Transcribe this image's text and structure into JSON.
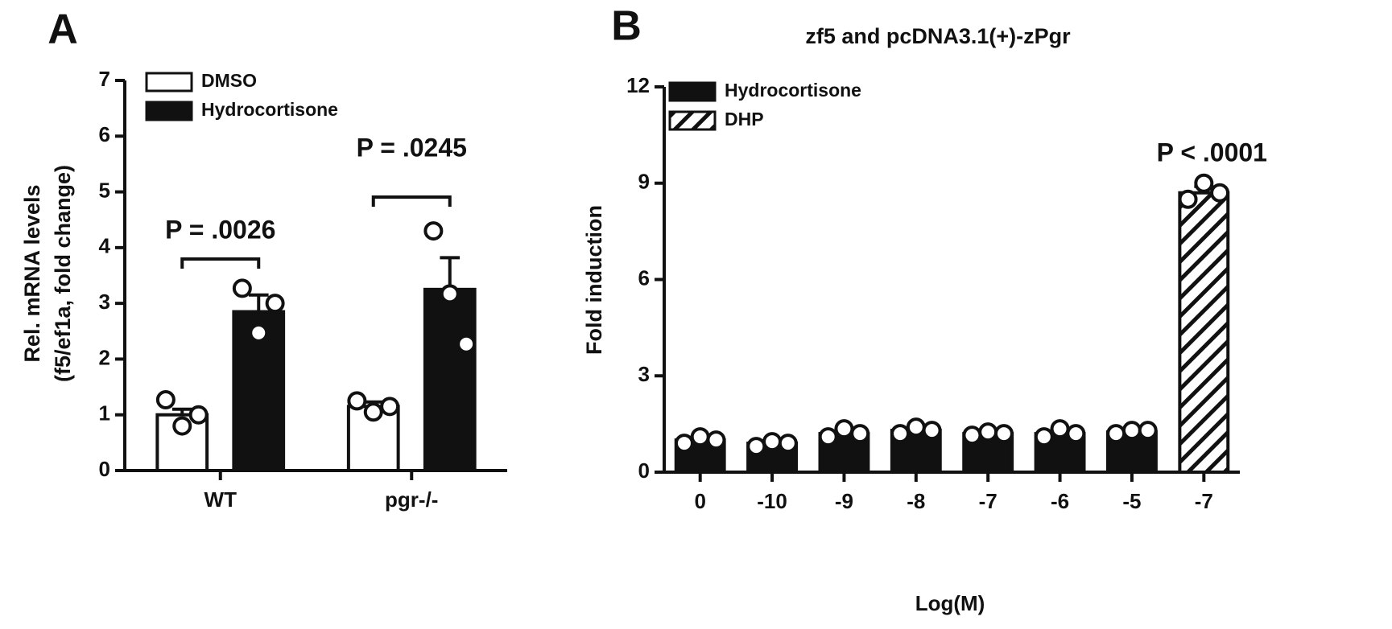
{
  "chart_data": [
    {
      "type": "bar",
      "panel": "A",
      "y_label": [
        "Rel. mRNA levels",
        "(f5/ef1a, fold change)"
      ],
      "categories": [
        "WT",
        "pgr-/-"
      ],
      "ylim": [
        0,
        7
      ],
      "yticks": [
        0,
        1,
        2,
        3,
        4,
        5,
        6,
        7
      ],
      "series": [
        {
          "name": "DMSO",
          "color": "#ffffff",
          "values": [
            1.0,
            1.15
          ],
          "errors": [
            0.1,
            0.08
          ],
          "points": [
            [
              1.27,
              0.8,
              1.0
            ],
            [
              1.25,
              1.05,
              1.15
            ]
          ]
        },
        {
          "name": "Hydrocortisone",
          "color": "#111111",
          "values": [
            2.85,
            3.25
          ],
          "errors": [
            0.3,
            0.57
          ],
          "points": [
            [
              3.27,
              2.47,
              3.0
            ],
            [
              4.3,
              3.17,
              2.27
            ]
          ]
        }
      ],
      "annotations": [
        "P = .0026",
        "P = .0245"
      ]
    },
    {
      "type": "bar",
      "panel": "B",
      "title": "zf5 and pcDNA3.1(+)-zPgr",
      "x_label": "Log(M)",
      "y_label": [
        "Fold induction"
      ],
      "categories": [
        "0",
        "-10",
        "-9",
        "-8",
        "-7",
        "-6",
        "-5",
        "-7"
      ],
      "ylim": [
        0,
        12
      ],
      "yticks": [
        0,
        3,
        6,
        9,
        12
      ],
      "series": [
        {
          "name": "Hydrocortisone",
          "color": "#111111",
          "hatch": false,
          "values": [
            1.0,
            0.9,
            1.2,
            1.3,
            1.2,
            1.2,
            1.25,
            null
          ],
          "errors": [
            0.1,
            0.08,
            0.12,
            0.1,
            0.05,
            0.12,
            0.05,
            null
          ],
          "points": [
            [
              0.9,
              1.1,
              1.0
            ],
            [
              0.8,
              0.95,
              0.9
            ],
            [
              1.1,
              1.35,
              1.2
            ],
            [
              1.2,
              1.4,
              1.3
            ],
            [
              1.15,
              1.25,
              1.2
            ],
            [
              1.1,
              1.35,
              1.2
            ],
            [
              1.2,
              1.3,
              1.3
            ],
            null
          ]
        },
        {
          "name": "DHP",
          "color": "#111111",
          "hatch": true,
          "values": [
            null,
            null,
            null,
            null,
            null,
            null,
            null,
            8.7
          ],
          "errors": [
            null,
            null,
            null,
            null,
            null,
            null,
            null,
            0.2
          ],
          "points": [
            null,
            null,
            null,
            null,
            null,
            null,
            null,
            [
              8.5,
              9.0,
              8.7
            ]
          ]
        }
      ],
      "annotations": [
        "P < .0001"
      ]
    }
  ]
}
